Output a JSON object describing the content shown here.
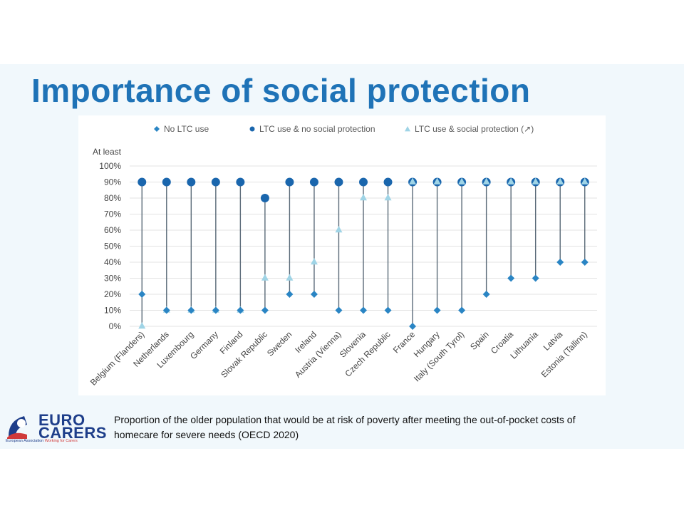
{
  "slide": {
    "title": "Importance of social protection",
    "caption": "Proportion of the older population that would be at risk of poverty after meeting the out-of-pocket costs of homecare for severe needs (OECD 2020)"
  },
  "logo": {
    "line1": "EURO",
    "line2": "CARERS",
    "sub_left": "European Association ",
    "sub_right": "Working for Carers"
  },
  "colors": {
    "title": "#1f73b7",
    "no_ltc": "#2a85c4",
    "ltc_no_sp": "#1a66ad",
    "ltc_sp": "#9fd4e6",
    "stem": "#5a6a78",
    "grid": "#e3e3e3",
    "panel": "#f1f8fc"
  },
  "chart_data": {
    "type": "scatter",
    "yprefix": "At least",
    "ylim": [
      0,
      100
    ],
    "yticks": [
      "0%",
      "10%",
      "20%",
      "30%",
      "40%",
      "50%",
      "60%",
      "70%",
      "80%",
      "90%",
      "100%"
    ],
    "legend_position": "top",
    "categories": [
      "Belgium (Flanders)",
      "Netherlands",
      "Luxembourg",
      "Germany",
      "Finland",
      "Slovak Republic",
      "Sweden",
      "Ireland",
      "Austria (Vienna)",
      "Slovenia",
      "Czech Republic",
      "France",
      "Hungary",
      "Italy (South Tyrol)",
      "Spain",
      "Croatia",
      "Lithuania",
      "Latvia",
      "Estonia (Tallinn)"
    ],
    "series": [
      {
        "name": "No LTC use",
        "marker": "diamond",
        "values": [
          20,
          10,
          10,
          10,
          10,
          10,
          20,
          20,
          10,
          10,
          10,
          0,
          10,
          10,
          20,
          30,
          30,
          40,
          40
        ]
      },
      {
        "name": "LTC use & no social protection",
        "marker": "circle",
        "values": [
          90,
          90,
          90,
          90,
          90,
          80,
          90,
          90,
          90,
          90,
          90,
          90,
          90,
          90,
          90,
          90,
          90,
          90,
          90
        ]
      },
      {
        "name": "LTC use & social protection (↗)",
        "marker": "triangle",
        "values": [
          0,
          10,
          10,
          10,
          10,
          30,
          30,
          40,
          60,
          80,
          80,
          90,
          90,
          90,
          90,
          90,
          90,
          90,
          90
        ]
      }
    ]
  }
}
